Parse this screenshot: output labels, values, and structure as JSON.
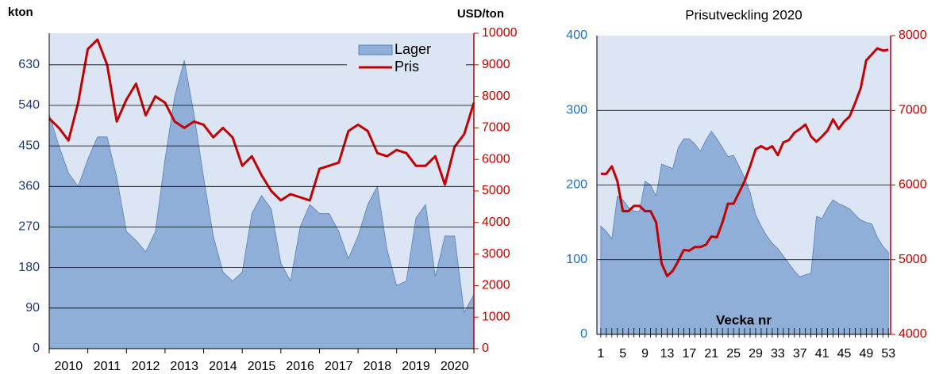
{
  "chart_data": [
    {
      "type": "area-line",
      "ylabel": "kton",
      "y2label": "USD/ton",
      "xlim": [
        2010,
        2021
      ],
      "xticks": [
        {
          "value": 2010.5,
          "label": "2010"
        },
        {
          "value": 2011.5,
          "label": "2011"
        },
        {
          "value": 2012.5,
          "label": "2012"
        },
        {
          "value": 2013.5,
          "label": "2013"
        },
        {
          "value": 2014.5,
          "label": "2014"
        },
        {
          "value": 2015.5,
          "label": "2015"
        },
        {
          "value": 2016.5,
          "label": "2016"
        },
        {
          "value": 2017.5,
          "label": "2017"
        },
        {
          "value": 2018.5,
          "label": "2018"
        },
        {
          "value": 2019.5,
          "label": "2019"
        },
        {
          "value": 2020.5,
          "label": "2020"
        }
      ],
      "ylim": [
        0,
        700
      ],
      "yticks": [
        0,
        90,
        180,
        270,
        360,
        450,
        540,
        630
      ],
      "y2lim": [
        0,
        10000
      ],
      "y2ticks": [
        0,
        1000,
        2000,
        3000,
        4000,
        5000,
        6000,
        7000,
        8000,
        9000,
        10000
      ],
      "grid": true,
      "legend": "upper right",
      "x": [
        2010,
        2010.25,
        2010.5,
        2010.75,
        2011,
        2011.25,
        2011.5,
        2011.75,
        2012,
        2012.25,
        2012.5,
        2012.75,
        2013,
        2013.25,
        2013.5,
        2013.75,
        2014,
        2014.25,
        2014.5,
        2014.75,
        2015,
        2015.25,
        2015.5,
        2015.75,
        2016,
        2016.25,
        2016.5,
        2016.75,
        2017,
        2017.25,
        2017.5,
        2017.75,
        2018,
        2018.25,
        2018.5,
        2018.75,
        2019,
        2019.25,
        2019.5,
        2019.75,
        2020,
        2020.25,
        2020.5,
        2020.75,
        2021
      ],
      "series": [
        {
          "name": "Lager",
          "type": "area",
          "color": "#8fafd8",
          "values": [
            520,
            450,
            390,
            360,
            420,
            470,
            470,
            380,
            260,
            240,
            215,
            260,
            420,
            560,
            640,
            520,
            380,
            250,
            170,
            150,
            170,
            300,
            340,
            310,
            190,
            150,
            270,
            320,
            300,
            300,
            260,
            200,
            250,
            320,
            360,
            220,
            140,
            150,
            290,
            320,
            160,
            250,
            250,
            80,
            120
          ]
        },
        {
          "name": "Pris",
          "type": "line",
          "axis": "y2",
          "color": "#c00000",
          "values": [
            7300,
            7000,
            6600,
            7800,
            9500,
            9800,
            9000,
            7200,
            7900,
            8400,
            7400,
            8000,
            7800,
            7200,
            7000,
            7200,
            7100,
            6700,
            7000,
            6700,
            5800,
            6100,
            5500,
            5000,
            4700,
            4900,
            4800,
            4700,
            5700,
            5800,
            5900,
            6900,
            7100,
            6900,
            6200,
            6100,
            6300,
            6200,
            5800,
            5800,
            6100,
            5200,
            6400,
            6800,
            7800
          ]
        }
      ]
    },
    {
      "type": "area-line",
      "title": "Prisutveckling 2020",
      "xlabel": "Vecka nr",
      "xlim": [
        0.3,
        53.4
      ],
      "xticks": [
        1,
        5,
        9,
        13,
        17,
        21,
        25,
        29,
        33,
        37,
        41,
        45,
        49,
        53
      ],
      "ylim": [
        0,
        400
      ],
      "yticks": [
        0,
        100,
        200,
        300,
        400
      ],
      "y2lim": [
        4000,
        8000
      ],
      "y2ticks": [
        4000,
        5000,
        6000,
        7000,
        8000
      ],
      "grid": true,
      "x": [
        1,
        2,
        3,
        4,
        5,
        6,
        7,
        8,
        9,
        10,
        11,
        12,
        13,
        14,
        15,
        16,
        17,
        18,
        19,
        20,
        21,
        22,
        23,
        24,
        25,
        26,
        27,
        28,
        29,
        30,
        31,
        32,
        33,
        34,
        35,
        36,
        37,
        38,
        39,
        40,
        41,
        42,
        43,
        44,
        45,
        46,
        47,
        48,
        49,
        50,
        51,
        52,
        53
      ],
      "series": [
        {
          "name": "Lager",
          "type": "area",
          "color": "#8fafd8",
          "values": [
            145,
            138,
            128,
            185,
            180,
            170,
            165,
            165,
            205,
            200,
            185,
            228,
            225,
            222,
            250,
            262,
            262,
            255,
            245,
            260,
            272,
            262,
            250,
            238,
            240,
            225,
            210,
            190,
            160,
            145,
            132,
            122,
            115,
            105,
            95,
            85,
            77,
            80,
            82,
            158,
            155,
            170,
            180,
            175,
            172,
            168,
            160,
            153,
            150,
            148,
            130,
            118,
            110
          ]
        },
        {
          "name": "Pris",
          "type": "line",
          "axis": "y2",
          "color": "#c00000",
          "values": [
            6150,
            6150,
            6250,
            6050,
            5650,
            5650,
            5720,
            5720,
            5650,
            5650,
            5500,
            4950,
            4780,
            4850,
            4980,
            5130,
            5120,
            5170,
            5170,
            5200,
            5310,
            5300,
            5500,
            5750,
            5750,
            5900,
            6050,
            6250,
            6480,
            6520,
            6480,
            6520,
            6400,
            6570,
            6600,
            6700,
            6750,
            6810,
            6650,
            6580,
            6650,
            6730,
            6880,
            6750,
            6850,
            6920,
            7100,
            7300,
            7670,
            7750,
            7830,
            7800,
            7810
          ]
        }
      ]
    }
  ]
}
